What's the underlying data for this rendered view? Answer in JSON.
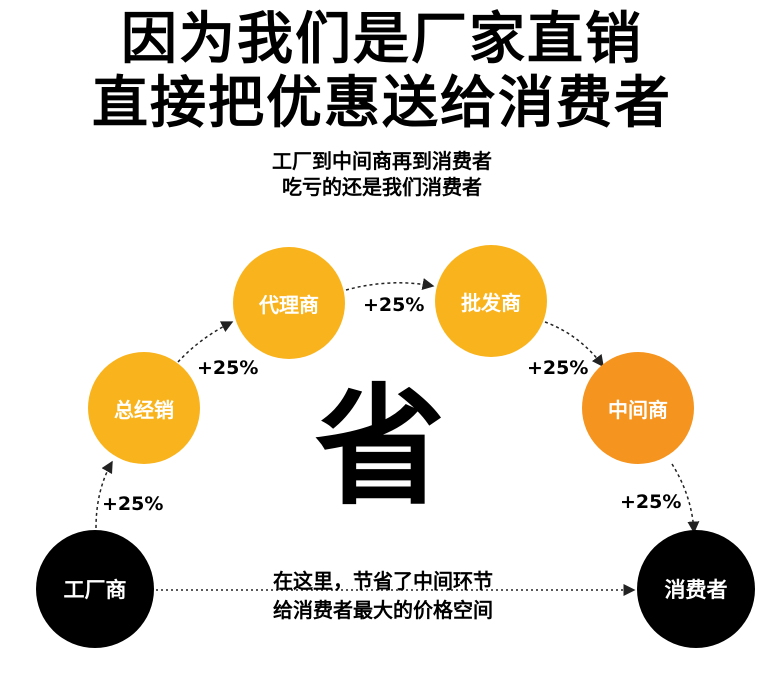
{
  "headline": {
    "line1": "因为我们是厂家直销",
    "line2": "直接把优惠送给消费者"
  },
  "subline": {
    "line1": "工厂到中间商再到消费者",
    "line2": "吃亏的还是我们消费者"
  },
  "nodes": {
    "factory": "工厂商",
    "general_distributor": "总经销",
    "agent": "代理商",
    "wholesaler": "批发商",
    "middleman": "中间商",
    "consumer": "消费者"
  },
  "markups": {
    "factory_to_general": "+25%",
    "general_to_agent": "+25%",
    "agent_to_wholesaler": "+25%",
    "wholesaler_to_middleman": "+25%",
    "middleman_to_consumer": "+25%"
  },
  "center_char": "省",
  "note": {
    "line1": "在这里，节省了中间环节",
    "line2": "给消费者最大的价格空间"
  },
  "colors": {
    "yellow_node": "#f9b31c",
    "orange_node": "#f5941e",
    "black_node": "#000000"
  }
}
